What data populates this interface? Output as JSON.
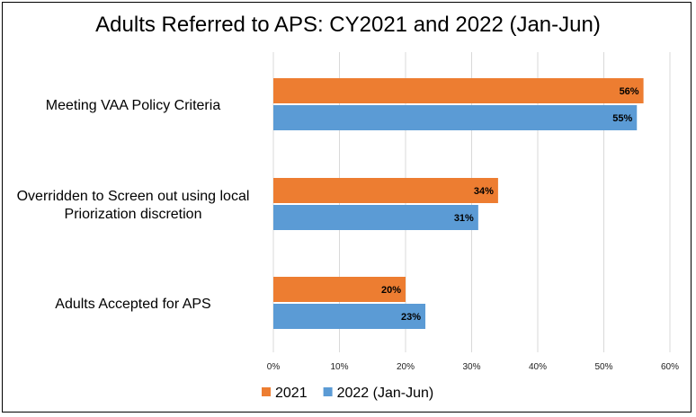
{
  "chart_data": {
    "type": "bar",
    "orientation": "horizontal",
    "title": "Adults Referred to APS: CY2021 and 2022 (Jan-Jun)",
    "categories": [
      [
        "Meeting VAA Policy Criteria"
      ],
      [
        "Overridden to Screen out using local",
        "Priorization discretion"
      ],
      [
        "Adults Accepted for APS"
      ]
    ],
    "series": [
      {
        "name": "2021",
        "values": [
          56,
          34,
          20
        ],
        "labels": [
          "56%",
          "34%",
          "20%"
        ],
        "color": "#ED7D31"
      },
      {
        "name": "2022 (Jan-Jun)",
        "values": [
          55,
          31,
          23
        ],
        "labels": [
          "55%",
          "31%",
          "23%"
        ],
        "color": "#5B9BD5"
      }
    ],
    "xlim": [
      0,
      60
    ],
    "xticks": [
      "0%",
      "10%",
      "20%",
      "30%",
      "40%",
      "50%",
      "60%"
    ],
    "grid": true,
    "legend": "bottom-left"
  }
}
